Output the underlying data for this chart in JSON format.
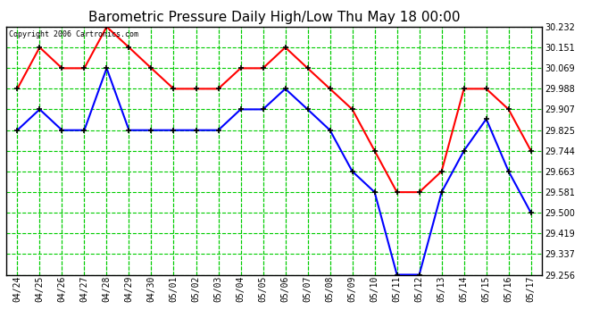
{
  "title": "Barometric Pressure Daily High/Low Thu May 18 00:00",
  "copyright": "Copyright 2006 Cartronics.com",
  "background_color": "#ffffff",
  "plot_bg_color": "#ffffff",
  "grid_color": "#00cc00",
  "x_labels": [
    "04/24",
    "04/25",
    "04/26",
    "04/27",
    "04/28",
    "04/29",
    "04/30",
    "05/01",
    "05/02",
    "05/03",
    "05/04",
    "05/05",
    "05/06",
    "05/07",
    "05/08",
    "05/09",
    "05/10",
    "05/11",
    "05/12",
    "05/13",
    "05/14",
    "05/15",
    "05/16",
    "05/17"
  ],
  "high_values": [
    29.988,
    30.151,
    30.069,
    30.069,
    30.232,
    30.151,
    30.069,
    29.988,
    29.988,
    29.988,
    30.069,
    30.069,
    30.151,
    30.069,
    29.988,
    29.907,
    29.744,
    29.581,
    29.581,
    29.663,
    29.988,
    29.988,
    29.907,
    29.744
  ],
  "low_values": [
    29.825,
    29.907,
    29.825,
    29.825,
    30.069,
    29.825,
    29.825,
    29.825,
    29.825,
    29.825,
    29.907,
    29.907,
    29.988,
    29.907,
    29.825,
    29.663,
    29.581,
    29.256,
    29.256,
    29.581,
    29.744,
    29.869,
    29.663,
    29.5
  ],
  "high_color": "#ff0000",
  "low_color": "#0000ff",
  "marker_color": "#000000",
  "ylim_min": 29.256,
  "ylim_max": 30.232,
  "yticks": [
    30.232,
    30.151,
    30.069,
    29.988,
    29.907,
    29.825,
    29.744,
    29.663,
    29.581,
    29.5,
    29.419,
    29.337,
    29.256
  ],
  "title_fontsize": 11,
  "tick_fontsize": 7,
  "copyright_fontsize": 6
}
